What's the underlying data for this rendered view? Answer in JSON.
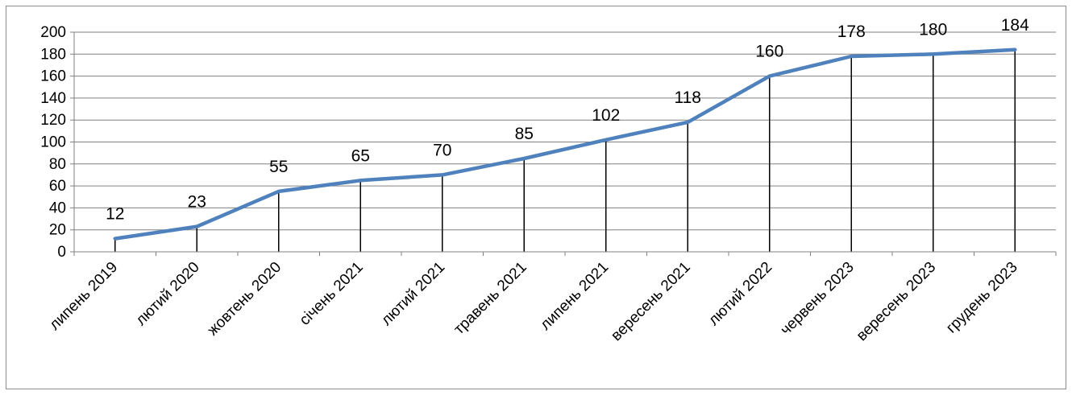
{
  "colors": {
    "line": "#4F81BD",
    "gridline": "#808080",
    "drop_line": "#000000",
    "text": "#000000",
    "frame": "#8c8c8c"
  },
  "chart_data": {
    "type": "line",
    "title": "",
    "xlabel": "",
    "ylabel": "",
    "categories": [
      "липень 2019",
      "лютий 2020",
      "жовтень 2020",
      "січень 2021",
      "лютий 2021",
      "травень 2021",
      "липень 2021",
      "вересень 2021",
      "лютий 2022",
      "червень 2023",
      "вересень 2023",
      "грудень 2023"
    ],
    "values": [
      12,
      23,
      55,
      65,
      70,
      85,
      102,
      118,
      160,
      178,
      180,
      184
    ],
    "data_labels": [
      "12",
      "23",
      "55",
      "65",
      "70",
      "85",
      "102",
      "118",
      "160",
      "178",
      "180",
      "184"
    ],
    "ylim": [
      0,
      200
    ],
    "y_ticks": [
      "0",
      "20",
      "40",
      "60",
      "80",
      "100",
      "120",
      "140",
      "160",
      "180",
      "200"
    ],
    "grid": true,
    "drop_lines": true,
    "legend": "none"
  }
}
